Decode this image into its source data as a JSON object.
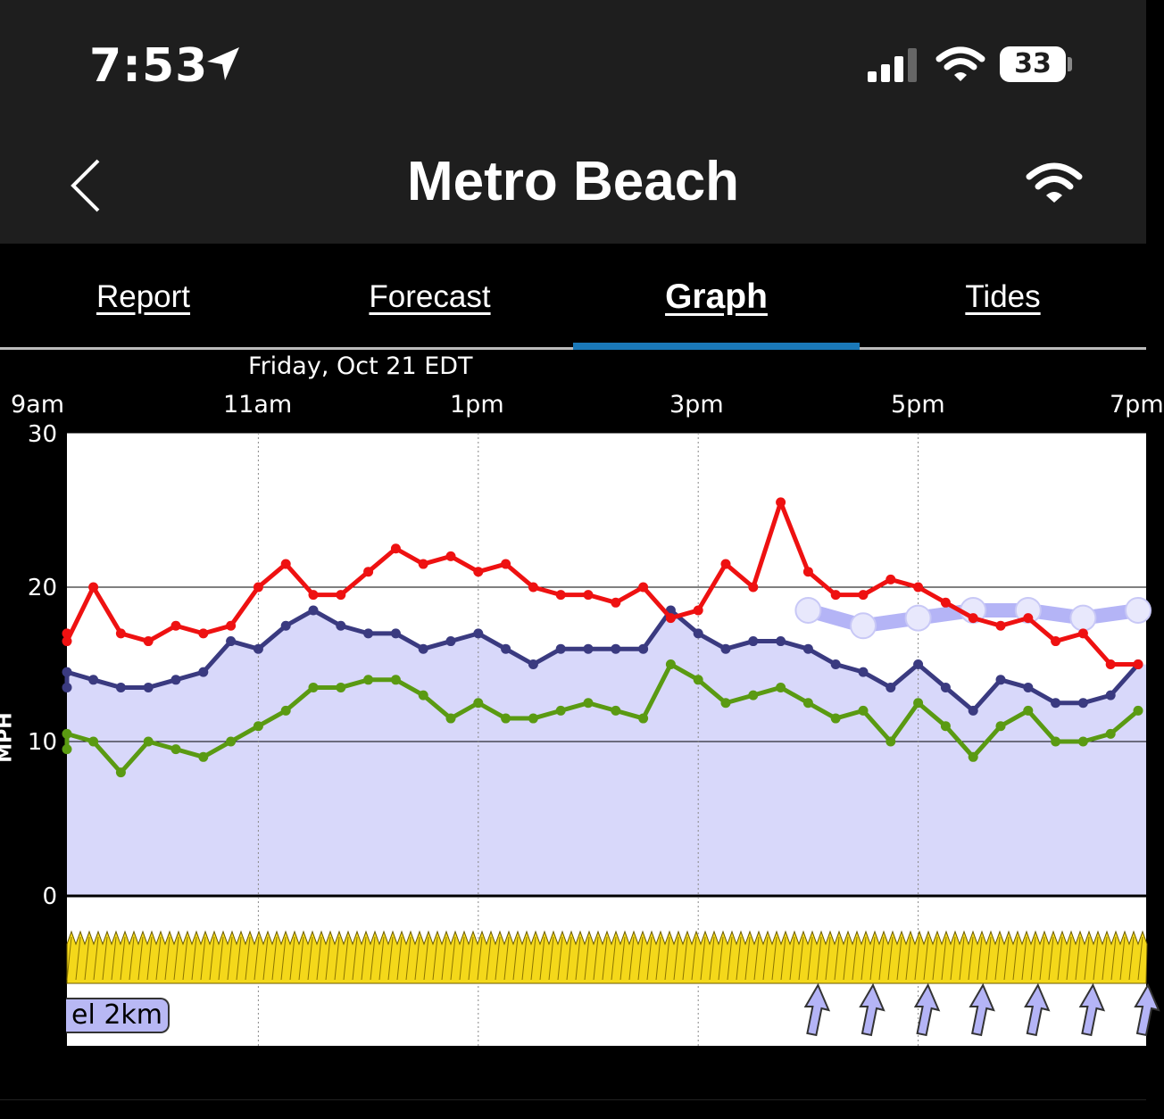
{
  "status": {
    "time": "7:53",
    "battery": "33",
    "location_icon": "location-arrow-icon",
    "signal_icon": "cellular-signal-icon",
    "wifi_icon": "wifi-icon"
  },
  "nav": {
    "title": "Metro Beach",
    "back_icon": "chevron-left-icon",
    "right_icon": "wifi-icon"
  },
  "tabs": [
    {
      "label": "Report",
      "active": false
    },
    {
      "label": "Forecast",
      "active": false
    },
    {
      "label": "Graph",
      "active": true
    },
    {
      "label": "Tides",
      "active": false
    }
  ],
  "colors": {
    "gust": "#ee1111",
    "average": "#3a3a80",
    "lull": "#5a9a12",
    "forecast": "#b4b4f6",
    "fill": "#d8d8fa",
    "direction": "#f4d81a",
    "tab_indicator": "#1a78b8"
  },
  "graph": {
    "date_label": "Friday, Oct 21 EDT",
    "model_label": "el  2km",
    "y_axis_label": "MPH"
  },
  "chart_data": {
    "type": "line",
    "x_tick_labels": [
      "9am",
      "11am",
      "1pm",
      "3pm",
      "5pm",
      "7pm"
    ],
    "y_tick_labels": [
      "30",
      "20",
      "10",
      "0"
    ],
    "ylabel": "MPH",
    "ylim": [
      0,
      30
    ],
    "grid": true,
    "x_unit": "hours since 9am",
    "series": [
      {
        "key": "gust",
        "x": [
          0,
          0.25,
          0.5,
          0.75,
          1,
          1.25,
          1.5,
          1.75,
          2,
          2.25,
          2.5,
          2.75,
          3,
          3.25,
          3.5,
          3.75,
          4,
          4.25,
          4.5,
          4.75,
          5,
          5.25,
          5.5,
          5.75,
          6,
          6.25,
          6.5,
          6.75,
          7,
          7.25,
          7.5,
          7.75,
          8,
          8.25,
          8.5,
          8.75,
          9,
          9.25,
          9.5,
          9.75,
          10
        ],
        "y": [
          17,
          16.5,
          20,
          17,
          16.5,
          17.5,
          17,
          17.5,
          20,
          21.5,
          19.5,
          19.5,
          21,
          22.5,
          21.5,
          22,
          21,
          21.5,
          20,
          19.5,
          19.5,
          19,
          20,
          18,
          18.5,
          21.5,
          20,
          25.5,
          21,
          19.5,
          19.5,
          20.5,
          20,
          19,
          18,
          17.5,
          18,
          16.5,
          17,
          15,
          15
        ]
      },
      {
        "key": "average",
        "x": [
          0,
          0.25,
          0.5,
          0.75,
          1,
          1.25,
          1.5,
          1.75,
          2,
          2.25,
          2.5,
          2.75,
          3,
          3.25,
          3.5,
          3.75,
          4,
          4.25,
          4.5,
          4.75,
          5,
          5.25,
          5.5,
          5.75,
          6,
          6.25,
          6.5,
          6.75,
          7,
          7.25,
          7.5,
          7.75,
          8,
          8.25,
          8.5,
          8.75,
          9,
          9.25,
          9.5,
          9.75,
          10
        ],
        "y": [
          13.5,
          14.5,
          14,
          13.5,
          13.5,
          14,
          14.5,
          16.5,
          16,
          17.5,
          18.5,
          17.5,
          17,
          17,
          16,
          16.5,
          17,
          16,
          15,
          16,
          16,
          16,
          16,
          18.5,
          17,
          16,
          16.5,
          16.5,
          16,
          15,
          14.5,
          13.5,
          15,
          13.5,
          12,
          14,
          13.5,
          12.5,
          12.5,
          13,
          15
        ]
      },
      {
        "key": "lull",
        "x": [
          0,
          0.25,
          0.5,
          0.75,
          1,
          1.25,
          1.5,
          1.75,
          2,
          2.25,
          2.5,
          2.75,
          3,
          3.25,
          3.5,
          3.75,
          4,
          4.25,
          4.5,
          4.75,
          5,
          5.25,
          5.5,
          5.75,
          6,
          6.25,
          6.5,
          6.75,
          7,
          7.25,
          7.5,
          7.75,
          8,
          8.25,
          8.5,
          8.75,
          9,
          9.25,
          9.5,
          9.75,
          10
        ],
        "y": [
          9.5,
          10.5,
          10,
          8,
          10,
          9.5,
          9,
          10,
          11,
          12,
          13.5,
          13.5,
          14,
          14,
          13,
          11.5,
          12.5,
          11.5,
          11.5,
          12,
          12.5,
          12,
          11.5,
          15,
          14,
          12.5,
          13,
          13.5,
          12.5,
          11.5,
          12,
          10,
          12.5,
          11,
          9,
          11,
          12,
          10,
          10,
          10.5,
          12
        ]
      },
      {
        "key": "forecast",
        "x": [
          7,
          7.5,
          8,
          8.5,
          9,
          9.5,
          10
        ],
        "y": [
          18.5,
          17.5,
          18,
          18.5,
          18.5,
          18,
          18.5
        ]
      }
    ]
  }
}
